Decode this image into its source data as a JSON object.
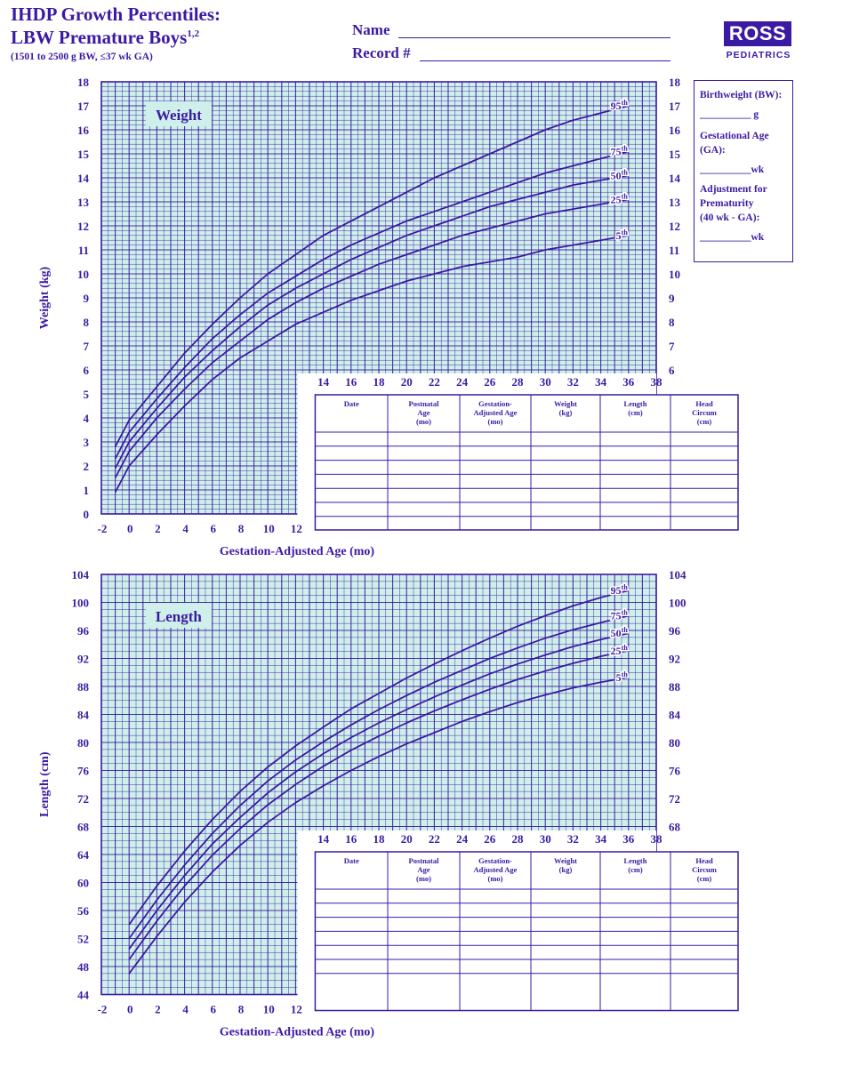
{
  "header": {
    "title_line1": "IHDP Growth Percentiles:",
    "title_line2": "LBW Premature Boys",
    "title_sup": "1,2",
    "subtitle": "(1501 to 2500 g BW, ≤37 wk GA)",
    "name_label": "Name",
    "record_label": "Record #",
    "logo": "ROSS",
    "logo_sub": "PEDIATRICS"
  },
  "sidebar": {
    "bw_label": "Birthweight (BW):",
    "bw_unit": "__________ g",
    "ga_label1": "Gestational Age",
    "ga_label2": "(GA):",
    "ga_unit": "__________wk",
    "adj_label1": "Adjustment for",
    "adj_label2": "Prematurity",
    "adj_label3": "(40 wk - GA):",
    "adj_unit": "__________wk"
  },
  "colors": {
    "grid": "#3b1aa3",
    "fill": "#cff0ea",
    "text": "#3b1aa3"
  },
  "table_headers": [
    [
      "Date"
    ],
    [
      "Postnatal",
      "Age",
      "(mo)"
    ],
    [
      "Gestation-",
      "Adjusted Age",
      "(mo)"
    ],
    [
      "Weight",
      "(kg)"
    ],
    [
      "Length",
      "(cm)"
    ],
    [
      "Head",
      "Circum",
      "(cm)"
    ]
  ],
  "chart_data": [
    {
      "type": "line",
      "title": "Weight",
      "xlabel": "Gestation-Adjusted Age (mo)",
      "ylabel": "Weight (kg)",
      "xlim": [
        -2,
        38
      ],
      "ylim": [
        0,
        18
      ],
      "x_ticks": [
        -2,
        0,
        2,
        4,
        6,
        8,
        10,
        12
      ],
      "x_ticks_upper": [
        14,
        16,
        18,
        20,
        22,
        24,
        26,
        28,
        30,
        32,
        34,
        36,
        38
      ],
      "y_ticks_left": [
        0,
        1,
        2,
        3,
        4,
        5,
        6,
        7,
        8,
        9,
        10,
        11,
        12,
        13,
        14,
        15,
        16,
        17,
        18
      ],
      "y_ticks_right": [
        6,
        7,
        8,
        9,
        10,
        11,
        12,
        13,
        14,
        15,
        16,
        17,
        18
      ],
      "x": [
        -1,
        0,
        2,
        4,
        6,
        8,
        10,
        12,
        14,
        16,
        18,
        20,
        22,
        24,
        26,
        28,
        30,
        32,
        34,
        36
      ],
      "series": [
        {
          "name": "95th",
          "values": [
            2.8,
            3.9,
            5.3,
            6.7,
            7.9,
            9.0,
            10.0,
            10.8,
            11.6,
            12.2,
            12.8,
            13.4,
            14.0,
            14.5,
            15.0,
            15.5,
            16.0,
            16.4,
            16.7,
            17.0
          ]
        },
        {
          "name": "75th",
          "values": [
            2.3,
            3.4,
            4.8,
            6.1,
            7.3,
            8.3,
            9.2,
            9.9,
            10.6,
            11.2,
            11.7,
            12.2,
            12.6,
            13.0,
            13.4,
            13.8,
            14.2,
            14.5,
            14.8,
            15.1
          ]
        },
        {
          "name": "50th",
          "values": [
            1.9,
            3.0,
            4.4,
            5.7,
            6.8,
            7.8,
            8.7,
            9.4,
            10.0,
            10.6,
            11.1,
            11.6,
            12.0,
            12.4,
            12.8,
            13.1,
            13.4,
            13.7,
            13.9,
            14.1
          ]
        },
        {
          "name": "25th",
          "values": [
            1.5,
            2.6,
            4.0,
            5.2,
            6.3,
            7.2,
            8.1,
            8.8,
            9.4,
            9.9,
            10.4,
            10.8,
            11.2,
            11.6,
            11.9,
            12.2,
            12.5,
            12.7,
            12.9,
            13.1
          ]
        },
        {
          "name": "5th",
          "values": [
            0.9,
            2.0,
            3.3,
            4.5,
            5.6,
            6.5,
            7.2,
            7.9,
            8.4,
            8.9,
            9.3,
            9.7,
            10.0,
            10.3,
            10.5,
            10.7,
            11.0,
            11.2,
            11.4,
            11.6
          ]
        }
      ]
    },
    {
      "type": "line",
      "title": "Length",
      "xlabel": "Gestation-Adjusted Age (mo)",
      "ylabel": "Length (cm)",
      "xlim": [
        -2,
        38
      ],
      "ylim": [
        44,
        104
      ],
      "x_ticks": [
        -2,
        0,
        2,
        4,
        6,
        8,
        10,
        12
      ],
      "x_ticks_upper": [
        14,
        16,
        18,
        20,
        22,
        24,
        26,
        28,
        30,
        32,
        34,
        36,
        38
      ],
      "y_ticks_left": [
        44,
        48,
        52,
        56,
        60,
        64,
        68,
        72,
        76,
        80,
        84,
        88,
        92,
        96,
        100,
        104
      ],
      "y_ticks_right": [
        68,
        72,
        76,
        80,
        84,
        88,
        92,
        96,
        100,
        104
      ],
      "x": [
        0,
        2,
        4,
        6,
        8,
        10,
        12,
        14,
        16,
        18,
        20,
        22,
        24,
        26,
        28,
        30,
        32,
        34,
        36
      ],
      "series": [
        {
          "name": "95th",
          "values": [
            54.0,
            59.5,
            64.5,
            69.0,
            73.0,
            76.5,
            79.5,
            82.2,
            84.8,
            87.0,
            89.2,
            91.2,
            93.1,
            94.9,
            96.6,
            98.1,
            99.5,
            100.7,
            101.7
          ]
        },
        {
          "name": "75th",
          "values": [
            52.0,
            57.5,
            62.5,
            67.0,
            71.0,
            74.5,
            77.5,
            80.1,
            82.5,
            84.7,
            86.7,
            88.6,
            90.3,
            92.0,
            93.5,
            94.9,
            96.1,
            97.1,
            98.1
          ]
        },
        {
          "name": "50th",
          "values": [
            50.5,
            56.0,
            61.0,
            65.5,
            69.3,
            72.8,
            75.8,
            78.4,
            80.7,
            82.8,
            84.7,
            86.5,
            88.2,
            89.8,
            91.2,
            92.5,
            93.7,
            94.7,
            95.6
          ]
        },
        {
          "name": "25th",
          "values": [
            49.0,
            54.5,
            59.5,
            63.9,
            67.7,
            71.1,
            74.0,
            76.6,
            78.9,
            80.9,
            82.8,
            84.5,
            86.1,
            87.6,
            89.0,
            90.2,
            91.3,
            92.3,
            93.1
          ]
        },
        {
          "name": "5th",
          "values": [
            47.0,
            52.3,
            57.2,
            61.5,
            65.3,
            68.6,
            71.4,
            73.8,
            76.0,
            78.0,
            79.8,
            81.4,
            83.0,
            84.4,
            85.7,
            86.8,
            87.8,
            88.6,
            89.3
          ]
        }
      ]
    }
  ]
}
